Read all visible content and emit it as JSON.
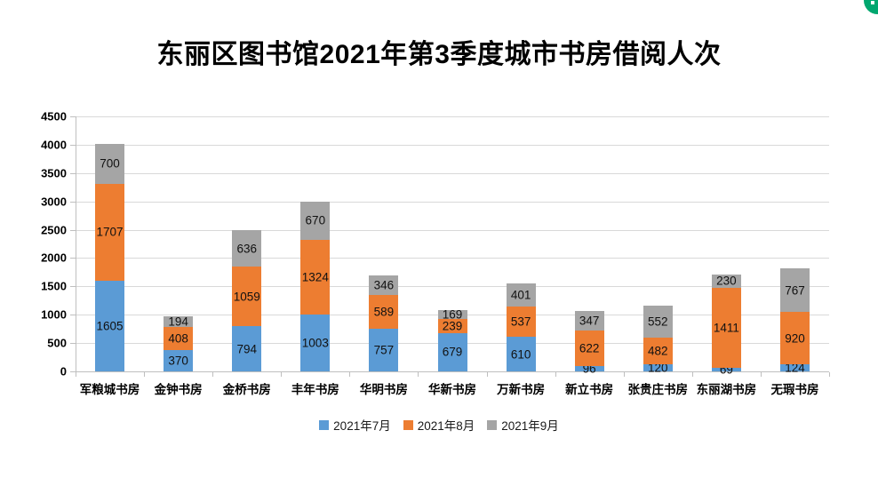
{
  "title": "东丽区图书馆2021年第3季度城市书房借阅人次",
  "chart_data": {
    "type": "bar",
    "subtype": "stacked",
    "title": "东丽区图书馆2021年第3季度城市书房借阅人次",
    "categories": [
      "军粮城书房",
      "金钟书房",
      "金桥书房",
      "丰年书房",
      "华明书房",
      "华新书房",
      "万新书房",
      "新立书房",
      "张贵庄书房",
      "东丽湖书房",
      "无瑕书房"
    ],
    "series": [
      {
        "name": "2021年7月",
        "color": "#5B9BD5",
        "values": [
          1605,
          370,
          794,
          1003,
          757,
          679,
          610,
          96,
          120,
          69,
          124
        ]
      },
      {
        "name": "2021年8月",
        "color": "#ED7D31",
        "values": [
          1707,
          408,
          1059,
          1324,
          589,
          239,
          537,
          622,
          482,
          1411,
          920
        ]
      },
      {
        "name": "2021年9月",
        "color": "#A5A5A5",
        "values": [
          700,
          194,
          636,
          670,
          346,
          169,
          401,
          347,
          552,
          230,
          767
        ]
      }
    ],
    "xlabel": "",
    "ylabel": "",
    "ylim": [
      0,
      4500
    ],
    "ytick_step": 500,
    "ytick_labels": [
      "0",
      "500",
      "1000",
      "1500",
      "2000",
      "2500",
      "3000",
      "3500",
      "4000",
      "4500"
    ],
    "grid": true,
    "data_labels": true,
    "legend_position": "bottom"
  },
  "decor": {
    "corner_badge_color": "#00A76F"
  }
}
